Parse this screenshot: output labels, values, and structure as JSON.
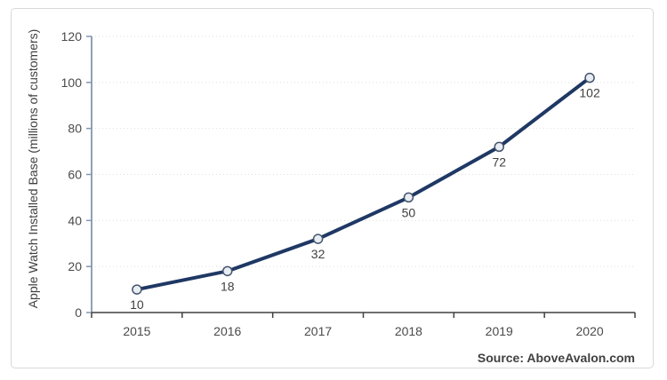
{
  "chart_data": {
    "type": "line",
    "categories": [
      "2015",
      "2016",
      "2017",
      "2018",
      "2019",
      "2020"
    ],
    "series": [
      {
        "name": "Apple Watch Installed Base",
        "values": [
          10,
          18,
          32,
          50,
          72,
          102
        ]
      }
    ],
    "title": "",
    "xlabel": "",
    "ylabel": "Apple Watch Installed Base (millions of customers)",
    "ylim": [
      0,
      120
    ],
    "yticks": [
      0,
      20,
      40,
      60,
      80,
      100,
      120
    ],
    "grid": "horizontal-dotted",
    "legend": "none",
    "data_labels_position": "below",
    "colors": {
      "line": "#1F3864",
      "marker_fill": "#E8EDF4",
      "marker_stroke": "#44546A",
      "y_axis": "#8496B0",
      "x_axis": "#404040",
      "gridline": "#DEDEDE",
      "frame_border": "#D9D9D9"
    }
  },
  "footer": {
    "source_label": "Source: AboveAvalon.com"
  }
}
